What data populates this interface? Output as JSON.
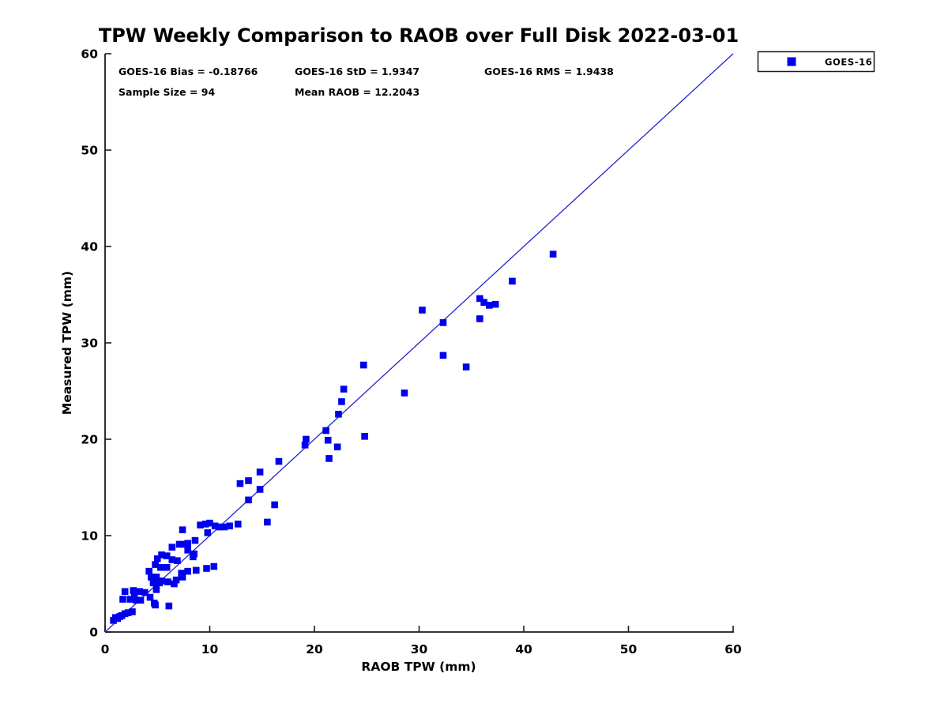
{
  "title": "TPW Weekly Comparison to RAOB over Full Disk 2022-03-01",
  "stats": {
    "bias": "GOES-16 Bias = -0.18766",
    "std": "GOES-16 StD = 1.9347",
    "rms": "GOES-16 RMS = 1.9438",
    "sample_size": "Sample Size = 94",
    "mean_raob": "Mean RAOB = 12.2043"
  },
  "legend": {
    "label": "GOES-16",
    "marker_color": "#0000ee",
    "position": "upper-right-outside"
  },
  "colors": {
    "marker": "#0000ee",
    "reference_line": "#2222cc",
    "axis": "#1a1a1a",
    "text": "#000000",
    "background": "#ffffff"
  },
  "chart_data": {
    "type": "scatter",
    "title": "TPW Weekly Comparison to RAOB over Full Disk 2022-03-01",
    "xlabel": "RAOB TPW (mm)",
    "ylabel": "Measured TPW (mm)",
    "xlim": [
      0,
      60
    ],
    "ylim": [
      0,
      60
    ],
    "xticks": [
      0,
      10,
      20,
      30,
      40,
      50,
      60
    ],
    "yticks": [
      0,
      10,
      20,
      30,
      40,
      50,
      60
    ],
    "grid": false,
    "reference_line": {
      "name": "1:1 line",
      "from": [
        0,
        0
      ],
      "to": [
        60,
        60
      ]
    },
    "series": [
      {
        "name": "GOES-16",
        "marker": "square",
        "color": "#0000ee",
        "points": [
          [
            0.8,
            1.2
          ],
          [
            1.0,
            1.5
          ],
          [
            1.2,
            1.4
          ],
          [
            1.4,
            1.6
          ],
          [
            1.6,
            1.7
          ],
          [
            1.9,
            1.9
          ],
          [
            2.2,
            2.0
          ],
          [
            2.6,
            2.1
          ],
          [
            1.7,
            3.4
          ],
          [
            2.4,
            3.4
          ],
          [
            3.0,
            3.3
          ],
          [
            3.4,
            3.3
          ],
          [
            4.3,
            3.6
          ],
          [
            4.7,
            3.0
          ],
          [
            1.9,
            4.2
          ],
          [
            2.7,
            4.3
          ],
          [
            2.8,
            3.8
          ],
          [
            3.3,
            4.2
          ],
          [
            3.8,
            4.1
          ],
          [
            4.9,
            4.4
          ],
          [
            4.8,
            2.8
          ],
          [
            6.1,
            2.7
          ],
          [
            4.4,
            5.7
          ],
          [
            4.9,
            5.7
          ],
          [
            4.6,
            5.1
          ],
          [
            5.2,
            5.1
          ],
          [
            5.4,
            5.3
          ],
          [
            6.0,
            5.2
          ],
          [
            6.6,
            5.0
          ],
          [
            6.8,
            5.4
          ],
          [
            7.4,
            5.7
          ],
          [
            7.3,
            6.1
          ],
          [
            7.9,
            6.3
          ],
          [
            8.7,
            6.4
          ],
          [
            4.2,
            6.3
          ],
          [
            4.8,
            7.0
          ],
          [
            5.0,
            7.6
          ],
          [
            5.3,
            6.7
          ],
          [
            5.4,
            8.0
          ],
          [
            5.9,
            7.9
          ],
          [
            5.9,
            6.7
          ],
          [
            6.4,
            7.5
          ],
          [
            6.4,
            8.8
          ],
          [
            6.9,
            7.4
          ],
          [
            7.1,
            9.1
          ],
          [
            7.5,
            9.1
          ],
          [
            7.9,
            8.5
          ],
          [
            7.9,
            9.2
          ],
          [
            8.5,
            8.1
          ],
          [
            8.4,
            7.8
          ],
          [
            8.6,
            9.5
          ],
          [
            7.4,
            10.6
          ],
          [
            9.7,
            6.6
          ],
          [
            10.4,
            6.8
          ],
          [
            9.1,
            11.1
          ],
          [
            9.6,
            11.2
          ],
          [
            10.0,
            11.3
          ],
          [
            10.5,
            11.0
          ],
          [
            10.9,
            10.9
          ],
          [
            11.4,
            10.9
          ],
          [
            11.9,
            11.0
          ],
          [
            12.7,
            11.2
          ],
          [
            9.8,
            10.3
          ],
          [
            15.5,
            11.4
          ],
          [
            16.2,
            13.2
          ],
          [
            13.7,
            13.7
          ],
          [
            12.9,
            15.4
          ],
          [
            13.7,
            15.7
          ],
          [
            14.8,
            16.6
          ],
          [
            14.8,
            14.8
          ],
          [
            16.6,
            17.7
          ],
          [
            19.1,
            19.4
          ],
          [
            19.2,
            20.0
          ],
          [
            21.3,
            19.9
          ],
          [
            22.2,
            19.2
          ],
          [
            21.4,
            18.0
          ],
          [
            21.1,
            20.9
          ],
          [
            22.3,
            22.6
          ],
          [
            22.6,
            23.9
          ],
          [
            22.8,
            25.2
          ],
          [
            24.8,
            20.3
          ],
          [
            24.7,
            27.7
          ],
          [
            28.6,
            24.8
          ],
          [
            30.3,
            33.4
          ],
          [
            32.3,
            32.1
          ],
          [
            32.3,
            28.7
          ],
          [
            34.5,
            27.5
          ],
          [
            35.8,
            34.6
          ],
          [
            36.2,
            34.2
          ],
          [
            36.7,
            33.9
          ],
          [
            37.3,
            34.0
          ],
          [
            35.8,
            32.5
          ],
          [
            38.9,
            36.4
          ],
          [
            42.8,
            39.2
          ]
        ]
      }
    ]
  }
}
